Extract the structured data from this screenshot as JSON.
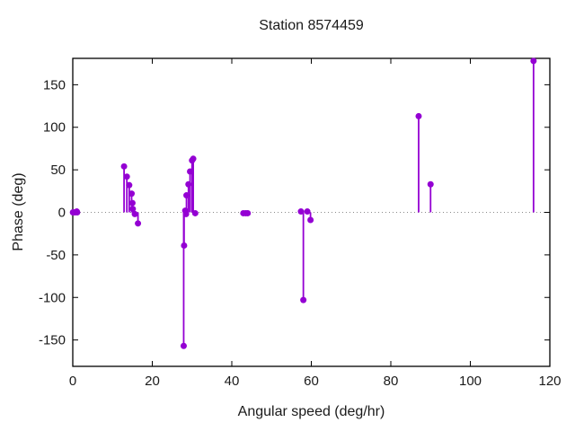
{
  "title": "Station 8574459",
  "chart_data": {
    "type": "scatter",
    "style": "stem-impulses-with-points",
    "title": "Station 8574459",
    "xlabel": "Angular speed (deg/hr)",
    "ylabel": "Phase (deg)",
    "xlim": [
      0,
      120
    ],
    "ylim": [
      -181,
      181
    ],
    "xticks": [
      0,
      20,
      40,
      60,
      80,
      100,
      120
    ],
    "yticks": [
      -150,
      -100,
      -50,
      0,
      50,
      100,
      150
    ],
    "grid": false,
    "zero_line": true,
    "legend_position": "none",
    "series": [
      {
        "name": "phase",
        "color": "#9400d3",
        "points": [
          {
            "x": 0.04,
            "y": 0
          },
          {
            "x": 0.5,
            "y": 0
          },
          {
            "x": 1.0,
            "y": 1
          },
          {
            "x": 1.1,
            "y": 0
          },
          {
            "x": 12.9,
            "y": 54
          },
          {
            "x": 13.6,
            "y": 42
          },
          {
            "x": 14.2,
            "y": 32
          },
          {
            "x": 14.8,
            "y": 22
          },
          {
            "x": 15.0,
            "y": 11
          },
          {
            "x": 15.1,
            "y": 4
          },
          {
            "x": 15.6,
            "y": -2
          },
          {
            "x": 16.4,
            "y": -13
          },
          {
            "x": 27.9,
            "y": -157
          },
          {
            "x": 28.0,
            "y": -39
          },
          {
            "x": 28.3,
            "y": 2
          },
          {
            "x": 28.5,
            "y": -2
          },
          {
            "x": 28.6,
            "y": 20
          },
          {
            "x": 29.1,
            "y": 33
          },
          {
            "x": 29.5,
            "y": 48
          },
          {
            "x": 30.0,
            "y": 61
          },
          {
            "x": 30.3,
            "y": 63
          },
          {
            "x": 30.8,
            "y": -1
          },
          {
            "x": 42.9,
            "y": -1
          },
          {
            "x": 43.5,
            "y": -1
          },
          {
            "x": 44.0,
            "y": -1
          },
          {
            "x": 57.4,
            "y": 1
          },
          {
            "x": 58.0,
            "y": -103
          },
          {
            "x": 59.0,
            "y": 1
          },
          {
            "x": 59.8,
            "y": -9
          },
          {
            "x": 87.0,
            "y": 113
          },
          {
            "x": 90.0,
            "y": 33
          },
          {
            "x": 115.9,
            "y": 178
          }
        ]
      }
    ]
  },
  "colors": {
    "background": "#ffffff",
    "border": "#000000",
    "text": "#1a1a1a",
    "zero_line": "#8a8a8a",
    "series": "#9400d3"
  }
}
